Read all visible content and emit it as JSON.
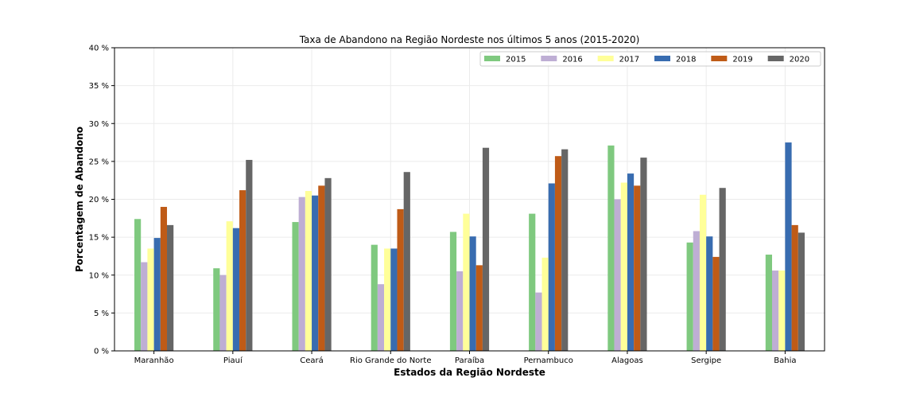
{
  "chart_data": {
    "type": "bar",
    "title": "Taxa de Abandono na Região Nordeste nos últimos 5 anos (2015-2020)",
    "xlabel": "Estados da Região Nordeste",
    "ylabel": "Porcentagem de Abandono",
    "ylim": [
      0,
      40
    ],
    "yticks": [
      "0 %",
      "5 %",
      "10 %",
      "15 %",
      "20 %",
      "25 %",
      "30 %",
      "35 %",
      "40 %"
    ],
    "grid": true,
    "legend_position": "top-right",
    "categories": [
      "Maranhão",
      "Piauí",
      "Ceará",
      "Rio Grande do Norte",
      "Paraíba",
      "Pernambuco",
      "Alagoas",
      "Sergipe",
      "Bahia"
    ],
    "series": [
      {
        "name": "2015",
        "color": "#7fc97f",
        "values": [
          17.4,
          10.9,
          17.0,
          14.0,
          15.7,
          18.1,
          27.1,
          14.3,
          12.7
        ]
      },
      {
        "name": "2016",
        "color": "#beaed4",
        "values": [
          11.7,
          10.0,
          20.3,
          8.8,
          10.5,
          7.7,
          20.0,
          15.8,
          10.6
        ]
      },
      {
        "name": "2017",
        "color": "#ffff99",
        "values": [
          13.5,
          17.1,
          21.1,
          13.5,
          18.1,
          12.3,
          22.2,
          20.6,
          10.6
        ]
      },
      {
        "name": "2018",
        "color": "#386cb0",
        "values": [
          14.9,
          16.2,
          20.5,
          13.5,
          15.1,
          22.1,
          23.4,
          15.1,
          27.5
        ]
      },
      {
        "name": "2019",
        "color": "#bf5b17",
        "values": [
          19.0,
          21.2,
          21.8,
          18.7,
          11.3,
          25.7,
          21.8,
          12.4,
          16.6
        ]
      },
      {
        "name": "2020",
        "color": "#666666",
        "values": [
          16.6,
          25.2,
          22.8,
          23.6,
          26.8,
          26.6,
          25.5,
          21.5,
          15.6
        ]
      }
    ]
  }
}
